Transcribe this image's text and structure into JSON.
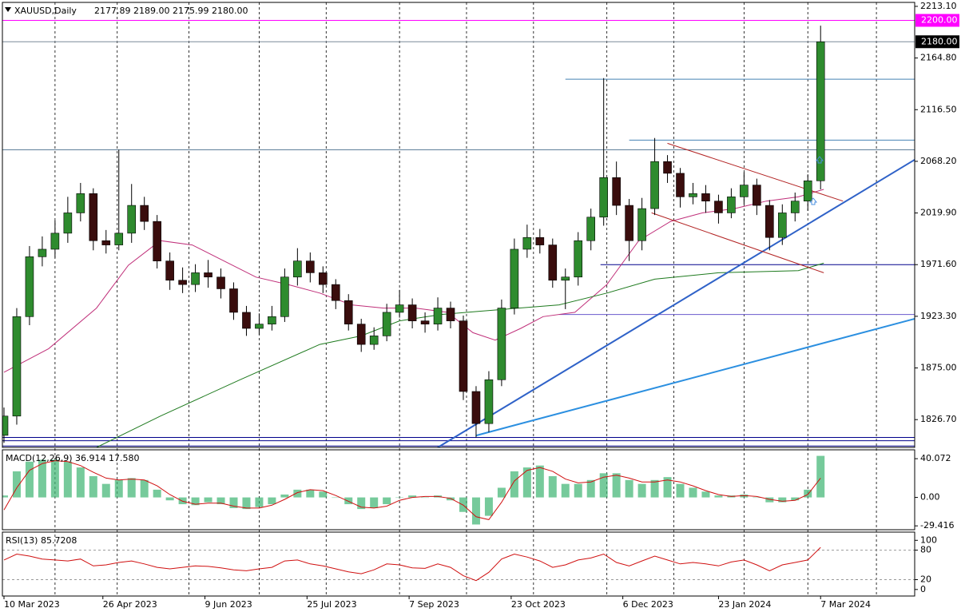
{
  "chart_data": [
    {
      "type": "candlestick",
      "title": "XAUUSD,Daily",
      "subtitle": "2177.89 2189.00 2175.99 2180.00",
      "x": [
        0,
        4,
        8,
        12,
        16,
        20,
        24,
        28,
        32,
        36,
        40,
        44,
        48,
        52,
        56,
        60,
        64,
        68,
        72,
        76,
        80,
        84,
        88,
        92,
        96,
        100,
        104,
        108,
        112,
        116,
        120,
        124,
        128,
        132,
        136,
        140,
        144,
        148,
        152,
        156,
        160,
        164,
        168,
        172,
        176,
        180,
        184,
        188,
        192,
        196,
        200,
        204,
        208,
        212,
        216,
        220,
        224,
        228,
        232,
        236,
        240,
        244,
        248,
        252,
        256
      ],
      "open": [
        1812,
        1830,
        1923,
        1979,
        1986,
        2001,
        2020,
        2038,
        1994,
        1990,
        2001,
        2027,
        2012,
        1975,
        1957,
        1953,
        1964,
        1960,
        1949,
        1927,
        1912,
        1916,
        1923,
        1960,
        1975,
        1964,
        1953,
        1938,
        1916,
        1897,
        1905,
        1927,
        1934,
        1919,
        1916,
        1931,
        1919,
        1853,
        1823,
        1864,
        1931,
        1986,
        1997,
        1990,
        1957,
        1960,
        1994,
        2016,
        2053,
        2027,
        1994,
        2024,
        2068,
        2057,
        2035,
        2038,
        2031,
        2020,
        2035,
        2046,
        2027,
        1997,
        2020,
        2031,
        2050
      ],
      "high": [
        1838,
        1931,
        1989,
        1998,
        2013,
        2035,
        2048,
        2043,
        2004,
        2079,
        2047,
        2035,
        2018,
        1983,
        1969,
        1972,
        1976,
        1968,
        1955,
        1933,
        1926,
        1933,
        1968,
        1987,
        1983,
        1970,
        1958,
        1944,
        1921,
        1913,
        1935,
        1948,
        1940,
        1927,
        1941,
        1937,
        1924,
        1858,
        1872,
        1939,
        1996,
        2009,
        2005,
        1996,
        1968,
        2002,
        2024,
        2146,
        2068,
        2033,
        2034,
        2090,
        2074,
        2062,
        2048,
        2046,
        2037,
        2043,
        2058,
        2052,
        2032,
        2028,
        2039,
        2056,
        2195
      ],
      "low": [
        1805,
        1822,
        1915,
        1970,
        1978,
        1992,
        2012,
        1985,
        1982,
        1985,
        1992,
        2004,
        1968,
        1948,
        1945,
        1946,
        1950,
        1940,
        1920,
        1905,
        1906,
        1910,
        1918,
        1952,
        1955,
        1945,
        1930,
        1910,
        1890,
        1892,
        1900,
        1922,
        1912,
        1908,
        1910,
        1912,
        1845,
        1810,
        1815,
        1858,
        1925,
        1978,
        1982,
        1950,
        1930,
        1952,
        1985,
        2008,
        2018,
        1975,
        1985,
        2018,
        2048,
        2025,
        2028,
        2020,
        2010,
        2015,
        2028,
        2018,
        1985,
        1990,
        2012,
        2022,
        2042
      ],
      "close": [
        1830,
        1923,
        1979,
        1986,
        2001,
        2020,
        2038,
        1994,
        1990,
        2001,
        2027,
        2012,
        1975,
        1957,
        1953,
        1964,
        1960,
        1949,
        1927,
        1912,
        1916,
        1923,
        1960,
        1975,
        1964,
        1953,
        1938,
        1916,
        1897,
        1905,
        1927,
        1934,
        1919,
        1916,
        1931,
        1919,
        1853,
        1823,
        1864,
        1931,
        1986,
        1997,
        1990,
        1957,
        1960,
        1994,
        2016,
        2053,
        2027,
        1994,
        2024,
        2068,
        2057,
        2035,
        2038,
        2031,
        2020,
        2035,
        2046,
        2027,
        1997,
        2020,
        2031,
        2050,
        2180
      ],
      "up_color": "#2e8b2e",
      "down_color": "#3a0d0d",
      "xlim": [
        -0.5,
        285.5
      ],
      "xgrid": [
        16,
        35.5,
        58,
        80,
        101,
        124,
        145,
        166,
        189,
        210,
        232,
        252,
        273.5
      ],
      "ylim": [
        1800.7,
        2216.8
      ],
      "yticks": [
        {
          "value": 2213.1,
          "label": "2213.10"
        },
        {
          "value": 2164.8,
          "label": "2164.80"
        },
        {
          "value": 2116.5,
          "label": "2116.50"
        },
        {
          "value": 2068.2,
          "label": "2068.20"
        },
        {
          "value": 2019.9,
          "label": "2019.90"
        },
        {
          "value": 1971.6,
          "label": "1971.60"
        },
        {
          "value": 1923.3,
          "label": "1923.30"
        },
        {
          "value": 1875,
          "label": "1875.00"
        },
        {
          "value": 1826.7,
          "label": "1826.70"
        }
      ],
      "hlines": [
        {
          "value": 2200,
          "color": "#ff00ff",
          "label": "2200.00",
          "label_bg": "#ff00ff"
        },
        {
          "value": 2180,
          "color": "#7a8a99",
          "label": "2180.00",
          "label_bg": "#000000"
        },
        {
          "value": 2145,
          "color": "#4682b4",
          "from": 176
        },
        {
          "value": 2088,
          "color": "#4682b4",
          "from": 196
        },
        {
          "value": 2079,
          "color": "#5f7f99"
        },
        {
          "value": 1971.6,
          "color": "#00008b",
          "from": 187
        },
        {
          "value": 1925,
          "color": "#6a5acd",
          "from": 174
        },
        {
          "value": 1810,
          "color": "#00008b"
        },
        {
          "value": 1807,
          "color": "#00008b"
        },
        {
          "value": 1802,
          "color": "#00008b"
        }
      ],
      "overlays": [
        {
          "x": [
            0,
            14,
            29,
            39,
            49,
            59,
            69,
            79,
            89,
            99,
            109,
            119,
            129,
            139,
            147,
            154,
            162,
            169,
            179,
            189,
            199,
            209,
            219,
            229,
            239,
            249,
            257
          ],
          "y": [
            1871,
            1893,
            1931,
            1971,
            1994,
            1990,
            1975,
            1960,
            1953,
            1945,
            1934,
            1931,
            1931,
            1927,
            1908,
            1901,
            1912,
            1923,
            1927,
            1953,
            1994,
            2012,
            2020,
            2024,
            2031,
            2035,
            2042
          ],
          "color": "#c0307a",
          "width": 1
        },
        {
          "x": [
            29,
            49,
            74,
            99,
            112,
            124,
            137,
            149,
            174,
            189,
            204,
            224,
            249,
            257
          ],
          "y": [
            1800.7,
            1830,
            1864,
            1897,
            1905,
            1919,
            1925,
            1928,
            1934,
            1945,
            1958,
            1964,
            1966,
            1973
          ],
          "color": "#1e7a1e",
          "width": 1
        },
        {
          "x": [
            136,
            285.5
          ],
          "y": [
            1800.7,
            2069.7
          ],
          "color": "#2f62c8",
          "width": 2
        },
        {
          "x": [
            148,
            285.5
          ],
          "y": [
            1811.8,
            1921
          ],
          "color": "#2b8fe0",
          "width": 2
        },
        {
          "x": [
            208,
            263
          ],
          "y": [
            2085,
            2031
          ],
          "color": "#b22222",
          "width": 1
        },
        {
          "x": [
            203,
            257
          ],
          "y": [
            2020,
            1964
          ],
          "color": "#b22222",
          "width": 1
        }
      ]
    },
    {
      "type": "macd",
      "title": "MACD(12,26,9) 36.914 17.580",
      "x": [
        0,
        4,
        8,
        12,
        16,
        20,
        24,
        28,
        32,
        36,
        40,
        44,
        48,
        52,
        56,
        60,
        64,
        68,
        72,
        76,
        80,
        84,
        88,
        92,
        96,
        100,
        104,
        108,
        112,
        116,
        120,
        124,
        128,
        132,
        136,
        140,
        144,
        148,
        152,
        156,
        160,
        164,
        168,
        172,
        176,
        180,
        184,
        188,
        192,
        196,
        200,
        204,
        208,
        212,
        216,
        220,
        224,
        228,
        232,
        236,
        240,
        244,
        248,
        252,
        256
      ],
      "xlim": [
        -0.5,
        285.5
      ],
      "ylim": [
        -33.4,
        49.25
      ],
      "yticks": [
        40.072,
        {
          "value": 0,
          "label": "0.00"
        },
        -29.416
      ],
      "series": [
        {
          "color": "#3cb371",
          "values": [
            2,
            27,
            37,
            39,
            39,
            37,
            31,
            22,
            14,
            18,
            20,
            18,
            8,
            -3,
            -7,
            -8,
            -5,
            -7,
            -11,
            -12,
            -10,
            -7,
            3,
            8,
            8,
            6,
            0,
            -7,
            -12,
            -11,
            -7,
            0,
            2,
            0,
            2,
            -3,
            -15,
            -28,
            -19,
            10,
            27,
            31,
            33,
            22,
            14,
            14,
            18,
            25,
            25,
            18,
            14,
            18,
            21,
            14,
            10,
            6,
            2,
            2,
            3,
            0,
            -5,
            -5,
            -3,
            8,
            43
          ]
        },
        {
          "color": "#d01010",
          "values": [
            -13,
            10,
            28,
            35,
            38,
            37,
            33,
            26,
            20,
            18,
            19,
            18,
            12,
            3,
            -4,
            -7,
            -6,
            -6,
            -9,
            -11,
            -11,
            -8,
            -2,
            5,
            8,
            7,
            2,
            -4,
            -10,
            -11,
            -9,
            -3,
            0,
            1,
            1,
            -1,
            -8,
            -20,
            -23,
            -5,
            17,
            28,
            31,
            27,
            19,
            15,
            16,
            21,
            23,
            20,
            16,
            16,
            18,
            16,
            12,
            7,
            3,
            1,
            2,
            1,
            -2,
            -4,
            -3,
            3,
            20
          ]
        }
      ]
    },
    {
      "type": "line",
      "title": "RSI(13) 85.7208",
      "x": [
        0,
        4,
        8,
        12,
        16,
        20,
        24,
        28,
        32,
        36,
        40,
        44,
        48,
        52,
        56,
        60,
        64,
        68,
        72,
        76,
        80,
        84,
        88,
        92,
        96,
        100,
        104,
        108,
        112,
        116,
        120,
        124,
        128,
        132,
        136,
        140,
        144,
        148,
        152,
        156,
        160,
        164,
        168,
        172,
        176,
        180,
        184,
        188,
        192,
        196,
        200,
        204,
        208,
        212,
        216,
        220,
        224,
        228,
        232,
        236,
        240,
        244,
        248,
        252,
        256
      ],
      "xlim": [
        -0.5,
        285.5
      ],
      "ylim": [
        -13.3,
        116.7
      ],
      "yticks": [
        100,
        80,
        20,
        0
      ],
      "xticks": [
        {
          "value": 0,
          "label": "10 Mar 2023"
        },
        {
          "value": 31,
          "label": "26 Apr 2023"
        },
        {
          "value": 63,
          "label": "9 Jun 2023"
        },
        {
          "value": 95,
          "label": "25 Jul 2023"
        },
        {
          "value": 127,
          "label": "7 Sep 2023"
        },
        {
          "value": 159,
          "label": "23 Oct 2023"
        },
        {
          "value": 194,
          "label": "6 Dec 2023"
        },
        {
          "value": 224,
          "label": "23 Jan 2024"
        },
        {
          "value": 256,
          "label": "7 Mar 2024"
        }
      ],
      "hlines": [
        {
          "value": 80,
          "color": "#999999",
          "dash": true
        },
        {
          "value": 20,
          "color": "#999999",
          "dash": true
        }
      ],
      "series": [
        {
          "color": "#d01010",
          "values": [
            60,
            72,
            68,
            62,
            60,
            58,
            62,
            48,
            50,
            55,
            58,
            52,
            45,
            42,
            45,
            48,
            47,
            44,
            40,
            38,
            42,
            45,
            58,
            60,
            52,
            48,
            42,
            36,
            32,
            40,
            52,
            50,
            44,
            43,
            52,
            45,
            28,
            18,
            35,
            62,
            72,
            66,
            58,
            45,
            50,
            60,
            64,
            72,
            55,
            48,
            58,
            68,
            60,
            52,
            55,
            52,
            48,
            56,
            60,
            50,
            38,
            50,
            55,
            60,
            85.7208
          ]
        }
      ]
    }
  ]
}
